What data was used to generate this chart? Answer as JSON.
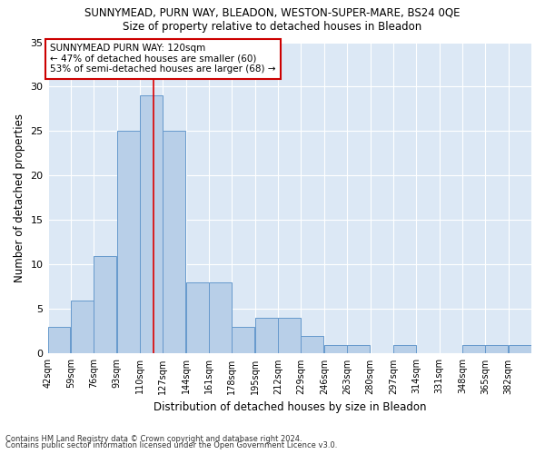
{
  "title": "SUNNYMEAD, PURN WAY, BLEADON, WESTON-SUPER-MARE, BS24 0QE",
  "subtitle": "Size of property relative to detached houses in Bleadon",
  "xlabel": "Distribution of detached houses by size in Bleadon",
  "ylabel": "Number of detached properties",
  "bin_labels": [
    "42sqm",
    "59sqm",
    "76sqm",
    "93sqm",
    "110sqm",
    "127sqm",
    "144sqm",
    "161sqm",
    "178sqm",
    "195sqm",
    "212sqm",
    "229sqm",
    "246sqm",
    "263sqm",
    "280sqm",
    "297sqm",
    "314sqm",
    "331sqm",
    "348sqm",
    "365sqm",
    "382sqm"
  ],
  "values": [
    3,
    6,
    11,
    25,
    29,
    25,
    8,
    8,
    3,
    4,
    4,
    2,
    1,
    1,
    0,
    1,
    0,
    0,
    1,
    1,
    1
  ],
  "bar_color": "#b8cfe8",
  "bar_edgecolor": "#6699cc",
  "marker_value": 120,
  "marker_color": "#dd0000",
  "annotation_text": "SUNNYMEAD PURN WAY: 120sqm\n← 47% of detached houses are smaller (60)\n53% of semi-detached houses are larger (68) →",
  "annotation_box_edgecolor": "#cc0000",
  "background_color": "#dce8f5",
  "ylim": [
    0,
    35
  ],
  "yticks": [
    0,
    5,
    10,
    15,
    20,
    25,
    30,
    35
  ],
  "footer1": "Contains HM Land Registry data © Crown copyright and database right 2024.",
  "footer2": "Contains public sector information licensed under the Open Government Licence v3.0.",
  "bin_width": 17
}
